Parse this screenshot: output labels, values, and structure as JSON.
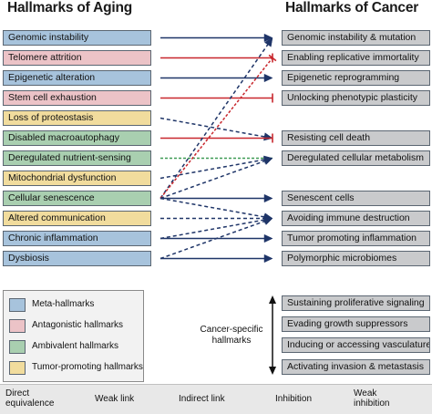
{
  "titles": {
    "left": "Hallmarks of Aging",
    "right": "Hallmarks of Cancer"
  },
  "aging_hallmarks": [
    {
      "label": "Genomic instability",
      "category": "meta"
    },
    {
      "label": "Telomere attrition",
      "category": "antag"
    },
    {
      "label": "Epigenetic alteration",
      "category": "meta"
    },
    {
      "label": "Stem cell exhaustion",
      "category": "antag"
    },
    {
      "label": "Loss of proteostasis",
      "category": "tumor"
    },
    {
      "label": "Disabled macroautophagy",
      "category": "ambi"
    },
    {
      "label": "Deregulated nutrient-sensing",
      "category": "ambi"
    },
    {
      "label": "Mitochondrial dysfunction",
      "category": "tumor"
    },
    {
      "label": "Cellular senescence",
      "category": "ambi"
    },
    {
      "label": "Altered communication",
      "category": "tumor"
    },
    {
      "label": "Chronic inflammation",
      "category": "meta"
    },
    {
      "label": "Dysbiosis",
      "category": "meta"
    }
  ],
  "cancer_hallmarks": [
    {
      "label": "Genomic instability & mutation",
      "row": 0
    },
    {
      "label": "Enabling replicative immortality",
      "row": 1
    },
    {
      "label": "Epigenetic reprogramming",
      "row": 2
    },
    {
      "label": "Unlocking phenotypic plasticity",
      "row": 3
    },
    {
      "label": "Resisting cell death",
      "row": 5
    },
    {
      "label": "Deregulated cellular metabolism",
      "row": 6
    },
    {
      "label": "Senescent cells",
      "row": 8
    },
    {
      "label": "Avoiding immune destruction",
      "row": 9
    },
    {
      "label": "Tumor promoting inflammation",
      "row": 10
    },
    {
      "label": "Polymorphic microbiomes",
      "row": 11
    }
  ],
  "cancer_specific_hallmarks": [
    "Sustaining proliferative signaling",
    "Evading growth suppressors",
    "Inducing or accessing vasculature",
    "Activating invasion & metastasis"
  ],
  "cancer_specific_label": "Cancer-specific hallmarks",
  "category_legend": [
    {
      "key": "meta",
      "label": "Meta-hallmarks",
      "color": "#a7c3dc"
    },
    {
      "key": "antag",
      "label": "Antagonistic hallmarks",
      "color": "#ecc3c7"
    },
    {
      "key": "ambi",
      "label": "Ambivalent hallmarks",
      "color": "#a9cfb0"
    },
    {
      "key": "tumor",
      "label": "Tumor-promoting hallmarks",
      "color": "#f1dc9d"
    }
  ],
  "link_legend": {
    "direct": "Direct equivalence",
    "weak": "Weak link",
    "indirect": "Indirect link",
    "inhibition": "Inhibition",
    "weak_inhibition": "Weak inhibition"
  },
  "colors": {
    "navy": "#1f3568",
    "red": "#c8272d",
    "green": "#3f9b55"
  },
  "links": [
    {
      "from": 0,
      "to": 0,
      "type": "direct"
    },
    {
      "from": 1,
      "to": 1,
      "type": "inhibition"
    },
    {
      "from": 2,
      "to": 2,
      "type": "direct"
    },
    {
      "from": 3,
      "to": 3,
      "type": "inhibition"
    },
    {
      "from": 4,
      "to": 5,
      "type": "weak"
    },
    {
      "from": 5,
      "to": 5,
      "type": "inhibition"
    },
    {
      "from": 6,
      "to": 6,
      "type": "indirect"
    },
    {
      "from": 7,
      "to": 6,
      "type": "weak"
    },
    {
      "from": 8,
      "to": 8,
      "type": "direct"
    },
    {
      "from": 8,
      "to": 0,
      "type": "weak"
    },
    {
      "from": 8,
      "to": 1,
      "type": "weak_inhibition"
    },
    {
      "from": 8,
      "to": 6,
      "type": "weak"
    },
    {
      "from": 8,
      "to": 9,
      "type": "weak"
    },
    {
      "from": 9,
      "to": 9,
      "type": "weak"
    },
    {
      "from": 10,
      "to": 9,
      "type": "weak"
    },
    {
      "from": 10,
      "to": 10,
      "type": "direct"
    },
    {
      "from": 11,
      "to": 9,
      "type": "weak"
    },
    {
      "from": 11,
      "to": 11,
      "type": "direct"
    }
  ]
}
